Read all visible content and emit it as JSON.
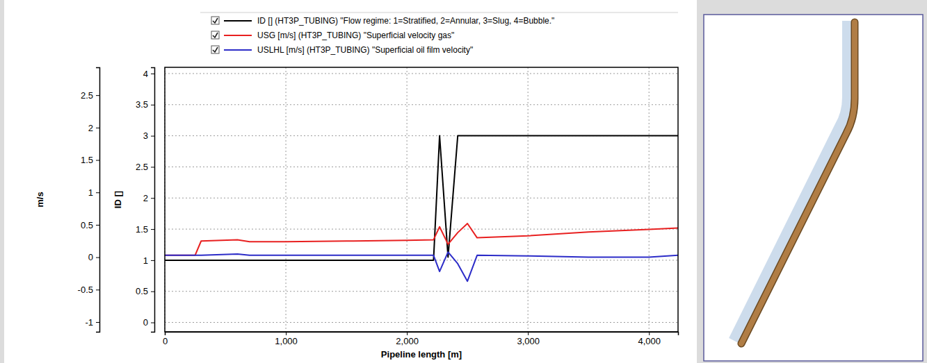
{
  "chart_data": {
    "type": "line",
    "x_label": "Pipeline length [m]",
    "y_label": "ID []",
    "y2_label": "m/s",
    "x": [
      0,
      200,
      250,
      300,
      600,
      700,
      1000,
      1500,
      2000,
      2220,
      2270,
      2340,
      2420,
      2500,
      2580,
      3000,
      3500,
      4000,
      4240
    ],
    "series": [
      {
        "name": "ID [] (HT3P_TUBING) \"Flow regime: 1=Stratified, 2=Annular, 3=Slug, 4=Bubble.\"",
        "color": "#000000",
        "values": [
          1,
          1,
          1,
          1,
          1,
          1,
          1,
          1,
          1,
          1,
          3,
          1.05,
          3,
          3,
          3,
          3,
          3,
          3,
          3
        ]
      },
      {
        "name": "USG [m/s] (HT3P_TUBING) \"Superficial velocity gas\"",
        "color": "#e82020",
        "axis": "y2",
        "values": [
          0.03,
          0.03,
          0.03,
          0.25,
          0.27,
          0.24,
          0.24,
          0.25,
          0.26,
          0.27,
          0.47,
          0.2,
          0.38,
          0.52,
          0.3,
          0.33,
          0.39,
          0.43,
          0.45
        ]
      },
      {
        "name": "USLHL [m/s] (HT3P_TUBING) \"Superficial oil film velocity\"",
        "color": "#2c2cc8",
        "axis": "y2",
        "values": [
          0.03,
          0.03,
          0.03,
          0.03,
          0.05,
          0.03,
          0.03,
          0.03,
          0.03,
          0.03,
          -0.22,
          0.08,
          -0.1,
          -0.37,
          0.03,
          0.02,
          0.0,
          0.0,
          0.03
        ]
      }
    ],
    "xlim": [
      0,
      4240
    ],
    "xticks": [
      0,
      {
        "value": 1000,
        "label": "1,000"
      },
      {
        "value": 2000,
        "label": "2,000"
      },
      {
        "value": 3000,
        "label": "3,000"
      },
      {
        "value": 4000,
        "label": "4,000"
      }
    ],
    "ylim": [
      -0.15,
      4.1
    ],
    "yticks": [
      0,
      0.5,
      1,
      1.5,
      2,
      2.5,
      3,
      3.5,
      4
    ],
    "y2lim": [
      -1.15,
      2.93
    ],
    "y2ticks": [
      -1,
      -0.5,
      0,
      0.5,
      1,
      1.5,
      2,
      2.5
    ],
    "grid": true,
    "legend": "top"
  }
}
